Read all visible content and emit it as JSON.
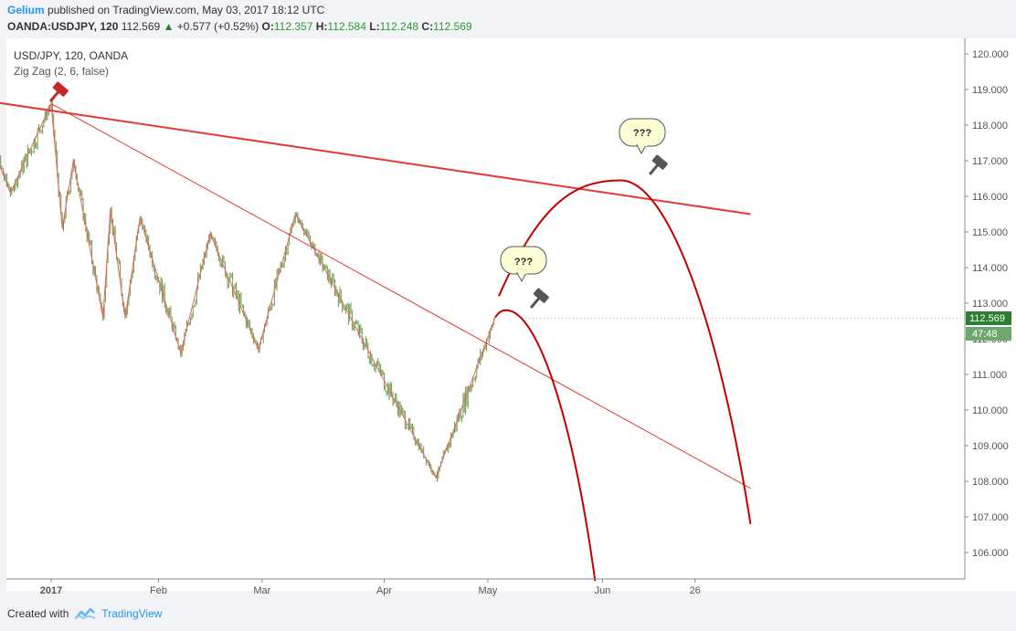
{
  "header": {
    "author": "Gelium",
    "published_text": "published on TradingView.com, May 03, 2017 18:12 UTC"
  },
  "quote": {
    "symbol": "OANDA:USDJPY, 120",
    "last": "112.569",
    "change": "+0.577 (+0.52%)",
    "open_label": "O:",
    "open": "112.357",
    "high_label": "H:",
    "high": "112.584",
    "low_label": "L:",
    "low": "112.248",
    "close_label": "C:",
    "close": "112.569"
  },
  "legend": {
    "line1": "USD/JPY, 120, OANDA",
    "line2": "Zig Zag (2, 6, false)"
  },
  "annotations": {
    "callout_1": "???",
    "callout_2": "???"
  },
  "price_tags": {
    "last_price": "112.569",
    "countdown": "47:48"
  },
  "footer": {
    "created_with": "Created with",
    "brand": "TradingView"
  },
  "colors": {
    "up": "#2e9b2e",
    "candle": "#6b9a4f",
    "trendline": "#e53935",
    "zigzag": "#f06262",
    "projection": "#c40000",
    "price_tag": "#2e7d32",
    "brand": "#2196f3"
  },
  "chart_data": {
    "type": "line",
    "series": [
      {
        "name": "Zig Zag (2, 6, false)",
        "points": [
          [
            "2016-12-15",
            118.2
          ],
          [
            "2016-12-23",
            116.1
          ],
          [
            "2017-01-03",
            118.6
          ],
          [
            "2017-01-06",
            115.1
          ],
          [
            "2017-01-09",
            117.0
          ],
          [
            "2017-01-17",
            112.6
          ],
          [
            "2017-01-19",
            115.6
          ],
          [
            "2017-01-23",
            112.6
          ],
          [
            "2017-01-27",
            115.4
          ],
          [
            "2017-02-07",
            111.6
          ],
          [
            "2017-02-15",
            114.95
          ],
          [
            "2017-02-28",
            111.7
          ],
          [
            "2017-03-10",
            115.5
          ],
          [
            "2017-04-17",
            108.1
          ],
          [
            "2017-05-03",
            112.6
          ]
        ]
      }
    ],
    "projections": [
      {
        "shape": "arc-up",
        "from": [
          "2017-05-04",
          113.2
        ],
        "peak": [
          "2017-06-06",
          116.45
        ],
        "to": [
          "2017-07-11",
          106.8
        ]
      },
      {
        "shape": "arc-down",
        "from": [
          "2017-05-03",
          112.6
        ],
        "peak": [
          "2017-05-06",
          112.8
        ],
        "to": [
          "2017-05-30",
          105.2
        ]
      }
    ],
    "trendlines": [
      {
        "from": [
          "2016-12-15",
          118.7
        ],
        "to": [
          "2017-07-11",
          115.5
        ]
      },
      {
        "from": [
          "2017-01-03",
          118.6
        ],
        "to": [
          "2017-07-11",
          107.8
        ]
      }
    ],
    "y_ticks": [
      "106.000",
      "107.000",
      "108.000",
      "109.000",
      "110.000",
      "111.000",
      "112.000",
      "113.000",
      "114.000",
      "115.000",
      "116.000",
      "117.000",
      "118.000",
      "119.000",
      "120.000"
    ],
    "x_ticks": [
      "2017",
      "Feb",
      "Mar",
      "Apr",
      "May",
      "Jun",
      "26"
    ],
    "ylim": [
      105.2,
      120.2
    ],
    "grid": false
  }
}
